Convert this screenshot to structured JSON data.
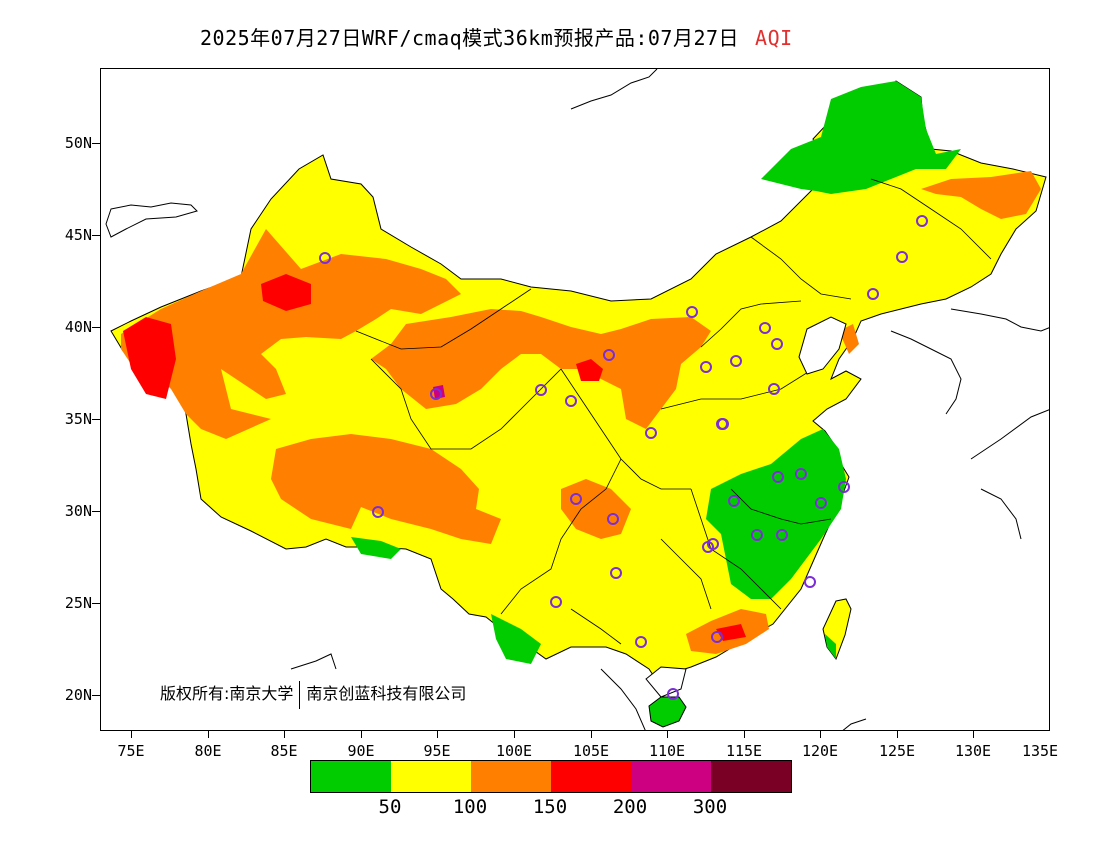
{
  "title": {
    "main": "2025年07月27日WRF/cmaq模式36km预报产品:07月27日",
    "variable": "AQI",
    "variable_color": "#e03030"
  },
  "axes": {
    "lat_labels": [
      "50N",
      "45N",
      "40N",
      "35N",
      "30N",
      "25N",
      "20N"
    ],
    "lon_labels": [
      "75E",
      "80E",
      "85E",
      "90E",
      "95E",
      "100E",
      "105E",
      "110E",
      "115E",
      "120E",
      "125E",
      "130E",
      "135E"
    ]
  },
  "copyright": {
    "owner_a": "版权所有:南京大学",
    "owner_b": "南京创蓝科技有限公司"
  },
  "legend": {
    "colors": [
      "#00cc00",
      "#ffff00",
      "#ff8000",
      "#ff0000",
      "#cc0080",
      "#7a0026"
    ],
    "labels": [
      "50",
      "100",
      "150",
      "200",
      "300"
    ]
  },
  "map": {
    "region": "China",
    "lon_range": [
      73,
      135
    ],
    "lat_range": [
      18,
      54
    ],
    "monitoring_site_color": "#7b2ed6"
  }
}
